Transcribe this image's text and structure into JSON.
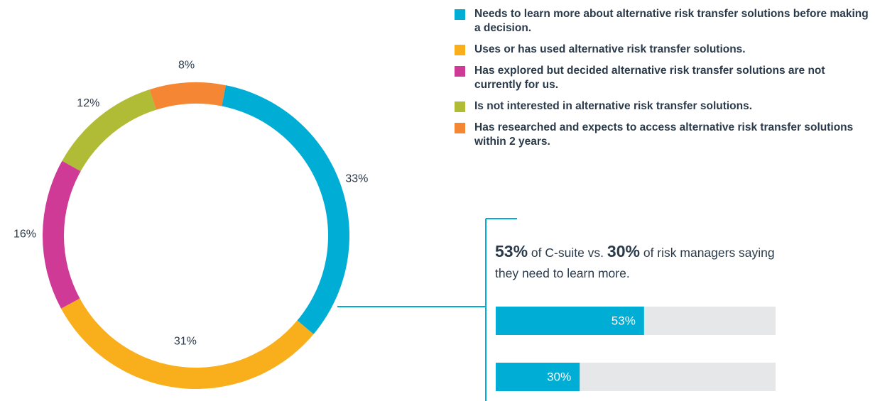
{
  "chart_data": [
    {
      "type": "donut",
      "categories": [
        "Needs to learn more about alternative risk transfer solutions before making a decision.",
        "Uses or has used alternative risk transfer solutions.",
        "Has explored but decided alternative risk transfer solutions are not currently for us.",
        "Is not interested in alternative risk transfer solutions.",
        "Has researched and expects to access alternative risk transfer solutions within 2 years."
      ],
      "values": [
        33,
        31,
        16,
        12,
        8
      ],
      "value_labels": [
        "33%",
        "31%",
        "16%",
        "12%",
        "8%"
      ],
      "colors": [
        "#00aed5",
        "#f9ae1b",
        "#cf3a96",
        "#b1bc36",
        "#f58634"
      ],
      "legend": "top-right"
    },
    {
      "type": "bar",
      "orientation": "horizontal",
      "annotation": [
        "53%",
        "of C-suite vs.",
        "30%",
        "of risk managers saying they need to learn more."
      ],
      "values": [
        53,
        30
      ],
      "value_labels": [
        "53%",
        "30%"
      ],
      "color": "#00aed5",
      "track_color": "#e6e7e8",
      "xlim": [
        0,
        100
      ]
    }
  ]
}
